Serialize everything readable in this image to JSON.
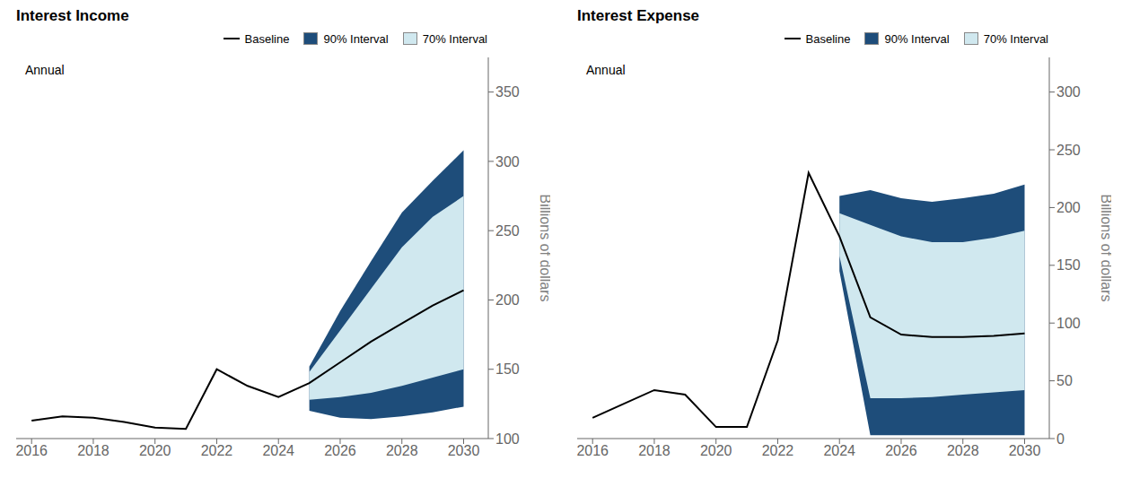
{
  "chart_data": [
    {
      "type": "line",
      "title": "Interest Income",
      "ylabel": "Billions of dollars",
      "annotation": "Annual",
      "x": [
        2016,
        2017,
        2018,
        2019,
        2020,
        2021,
        2022,
        2023,
        2024,
        2025,
        2026,
        2027,
        2028,
        2029,
        2030
      ],
      "series": [
        {
          "name": "Baseline",
          "type": "line",
          "color": "#000000",
          "values": [
            113,
            116,
            115,
            112,
            108,
            107,
            150,
            138,
            130,
            140,
            155,
            170,
            183,
            196,
            207
          ]
        },
        {
          "name": "90% Interval",
          "type": "area",
          "color": "#1e4d7a",
          "x": [
            2025,
            2026,
            2027,
            2028,
            2029,
            2030
          ],
          "lower": [
            120,
            115,
            114,
            116,
            119,
            123
          ],
          "upper": [
            152,
            192,
            228,
            263,
            286,
            308
          ]
        },
        {
          "name": "70% Interval",
          "type": "area",
          "color": "#d0e8ef",
          "x": [
            2025,
            2026,
            2027,
            2028,
            2029,
            2030
          ],
          "lower": [
            128,
            130,
            133,
            138,
            144,
            150
          ],
          "upper": [
            148,
            178,
            208,
            238,
            260,
            275
          ]
        }
      ],
      "xlim": [
        2015.5,
        2030.8
      ],
      "xticks": [
        2016,
        2018,
        2020,
        2022,
        2024,
        2026,
        2028,
        2030
      ],
      "ylim": [
        100,
        375
      ],
      "yticks": [
        100,
        150,
        200,
        250,
        300,
        350
      ],
      "grid": false,
      "legend": "upper right"
    },
    {
      "type": "line",
      "title": "Interest Expense",
      "ylabel": "Billions of dollars",
      "annotation": "Annual",
      "x": [
        2016,
        2017,
        2018,
        2019,
        2020,
        2021,
        2022,
        2023,
        2024,
        2025,
        2026,
        2027,
        2028,
        2029,
        2030
      ],
      "series": [
        {
          "name": "Baseline",
          "type": "line",
          "color": "#000000",
          "values": [
            18,
            30,
            42,
            38,
            10,
            10,
            85,
            230,
            175,
            105,
            90,
            88,
            88,
            89,
            91
          ]
        },
        {
          "name": "90% Interval",
          "type": "area",
          "color": "#1e4d7a",
          "x": [
            2024,
            2025,
            2026,
            2027,
            2028,
            2029,
            2030
          ],
          "lower": [
            145,
            3,
            3,
            3,
            3,
            3,
            3
          ],
          "upper": [
            210,
            215,
            208,
            205,
            208,
            212,
            220
          ]
        },
        {
          "name": "70% Interval",
          "type": "area",
          "color": "#d0e8ef",
          "x": [
            2024,
            2025,
            2026,
            2027,
            2028,
            2029,
            2030
          ],
          "lower": [
            158,
            35,
            35,
            36,
            38,
            40,
            42
          ],
          "upper": [
            195,
            185,
            175,
            170,
            170,
            174,
            180
          ]
        }
      ],
      "xlim": [
        2015.5,
        2030.8
      ],
      "xticks": [
        2016,
        2018,
        2020,
        2022,
        2024,
        2026,
        2028,
        2030
      ],
      "ylim": [
        0,
        330
      ],
      "yticks": [
        0,
        50,
        100,
        150,
        200,
        250,
        300
      ],
      "grid": false,
      "legend": "upper right"
    }
  ]
}
